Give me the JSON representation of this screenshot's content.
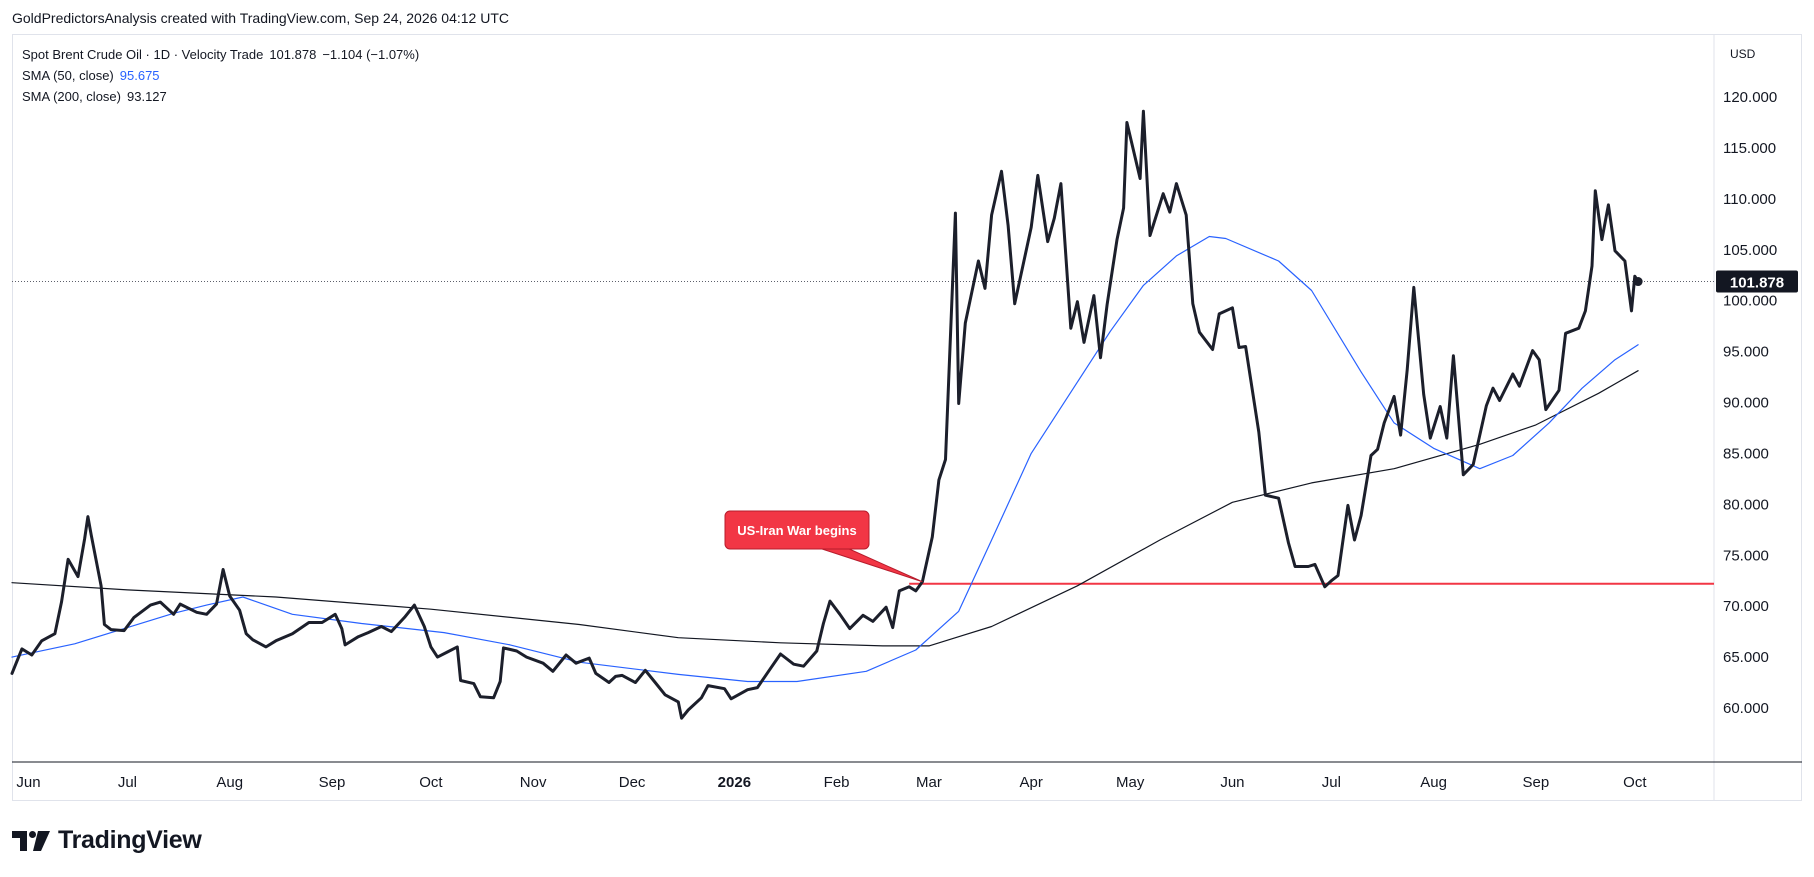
{
  "header": {
    "attribution": "GoldPredictorsAnalysis created with TradingView.com, Sep 24, 2026 04:12 UTC"
  },
  "legend": {
    "main": {
      "label": "Spot Brent Crude Oil · 1D · Velocity Trade",
      "value": "101.878",
      "change": "−1.104 (−1.07%)"
    },
    "sma50": {
      "label": "SMA (50, close)",
      "value": "95.675"
    },
    "sma200": {
      "label": "SMA (200, close)",
      "value": "93.127"
    }
  },
  "currency_button": "USD",
  "brand": {
    "name": "TradingView",
    "icon": "tradingview-logo-icon"
  },
  "colors": {
    "price_line": "#1c1f2b",
    "sma50": "#2962ff",
    "sma200": "#131722",
    "level_line": "#f23645",
    "callout_bg": "#f23645",
    "last_price_badge": "#131722",
    "axis_text": "#131722",
    "border": "#e0e3eb"
  },
  "chart_data": {
    "type": "line",
    "title": "",
    "xlabel": "",
    "ylabel": "",
    "ylim": [
      55,
      123
    ],
    "x_range": [
      "2025-05-27",
      "2026-10-25"
    ],
    "x_ticks": [
      {
        "date": "2025-06-01",
        "label": "Jun"
      },
      {
        "date": "2025-07-01",
        "label": "Jul"
      },
      {
        "date": "2025-08-01",
        "label": "Aug"
      },
      {
        "date": "2025-09-01",
        "label": "Sep"
      },
      {
        "date": "2025-10-01",
        "label": "Oct"
      },
      {
        "date": "2025-11-01",
        "label": "Nov"
      },
      {
        "date": "2025-12-01",
        "label": "Dec"
      },
      {
        "date": "2026-01-01",
        "label": "2026",
        "bold": true
      },
      {
        "date": "2026-02-01",
        "label": "Feb"
      },
      {
        "date": "2026-03-01",
        "label": "Mar"
      },
      {
        "date": "2026-04-01",
        "label": "Apr"
      },
      {
        "date": "2026-05-01",
        "label": "May"
      },
      {
        "date": "2026-06-01",
        "label": "Jun"
      },
      {
        "date": "2026-07-01",
        "label": "Jul"
      },
      {
        "date": "2026-08-01",
        "label": "Aug"
      },
      {
        "date": "2026-09-01",
        "label": "Sep"
      },
      {
        "date": "2026-10-01",
        "label": "Oct"
      }
    ],
    "y_ticks": [
      "60.000",
      "65.000",
      "70.000",
      "75.000",
      "80.000",
      "85.000",
      "90.000",
      "95.000",
      "100.000",
      "105.000",
      "110.000",
      "115.000",
      "120.000"
    ],
    "grid": false,
    "last_price": {
      "value": 101.878,
      "label": "101.878"
    },
    "series": [
      {
        "name": "Spot Brent Crude Oil",
        "role": "price",
        "points": [
          [
            "2025-05-27",
            63.4
          ],
          [
            "2025-05-30",
            65.8
          ],
          [
            "2025-06-02",
            65.2
          ],
          [
            "2025-06-05",
            66.6
          ],
          [
            "2025-06-09",
            67.3
          ],
          [
            "2025-06-11",
            70.4
          ],
          [
            "2025-06-13",
            74.6
          ],
          [
            "2025-06-16",
            72.9
          ],
          [
            "2025-06-18",
            76.6
          ],
          [
            "2025-06-19",
            78.8
          ],
          [
            "2025-06-20",
            77.0
          ],
          [
            "2025-06-23",
            72.0
          ],
          [
            "2025-06-24",
            68.2
          ],
          [
            "2025-06-26",
            67.7
          ],
          [
            "2025-06-30",
            67.6
          ],
          [
            "2025-07-03",
            68.9
          ],
          [
            "2025-07-08",
            70.1
          ],
          [
            "2025-07-11",
            70.4
          ],
          [
            "2025-07-15",
            69.2
          ],
          [
            "2025-07-17",
            70.2
          ],
          [
            "2025-07-22",
            69.4
          ],
          [
            "2025-07-25",
            69.2
          ],
          [
            "2025-07-28",
            70.2
          ],
          [
            "2025-07-30",
            73.6
          ],
          [
            "2025-08-01",
            71.0
          ],
          [
            "2025-08-04",
            69.6
          ],
          [
            "2025-08-06",
            67.3
          ],
          [
            "2025-08-08",
            66.7
          ],
          [
            "2025-08-12",
            66.0
          ],
          [
            "2025-08-15",
            66.6
          ],
          [
            "2025-08-20",
            67.3
          ],
          [
            "2025-08-25",
            68.4
          ],
          [
            "2025-08-29",
            68.4
          ],
          [
            "2025-09-02",
            69.2
          ],
          [
            "2025-09-04",
            67.8
          ],
          [
            "2025-09-05",
            66.2
          ],
          [
            "2025-09-09",
            67.0
          ],
          [
            "2025-09-12",
            67.4
          ],
          [
            "2025-09-16",
            68.0
          ],
          [
            "2025-09-19",
            67.5
          ],
          [
            "2025-09-23",
            68.9
          ],
          [
            "2025-09-26",
            70.1
          ],
          [
            "2025-09-29",
            68.0
          ],
          [
            "2025-10-01",
            66.0
          ],
          [
            "2025-10-03",
            65.0
          ],
          [
            "2025-10-06",
            65.5
          ],
          [
            "2025-10-09",
            66.0
          ],
          [
            "2025-10-10",
            62.7
          ],
          [
            "2025-10-14",
            62.4
          ],
          [
            "2025-10-16",
            61.1
          ],
          [
            "2025-10-20",
            61.0
          ],
          [
            "2025-10-22",
            62.6
          ],
          [
            "2025-10-23",
            65.9
          ],
          [
            "2025-10-27",
            65.6
          ],
          [
            "2025-10-30",
            65.0
          ],
          [
            "2025-11-04",
            64.4
          ],
          [
            "2025-11-07",
            63.6
          ],
          [
            "2025-11-11",
            65.2
          ],
          [
            "2025-11-14",
            64.4
          ],
          [
            "2025-11-18",
            64.9
          ],
          [
            "2025-11-20",
            63.4
          ],
          [
            "2025-11-24",
            62.5
          ],
          [
            "2025-11-26",
            63.1
          ],
          [
            "2025-11-28",
            63.2
          ],
          [
            "2025-12-02",
            62.5
          ],
          [
            "2025-12-05",
            63.7
          ],
          [
            "2025-12-08",
            62.5
          ],
          [
            "2025-12-11",
            61.3
          ],
          [
            "2025-12-15",
            60.6
          ],
          [
            "2025-12-16",
            59.0
          ],
          [
            "2025-12-18",
            59.8
          ],
          [
            "2025-12-22",
            61.0
          ],
          [
            "2025-12-24",
            62.2
          ],
          [
            "2025-12-29",
            61.9
          ],
          [
            "2025-12-31",
            60.9
          ],
          [
            "2026-01-05",
            61.8
          ],
          [
            "2026-01-08",
            62.0
          ],
          [
            "2026-01-12",
            63.9
          ],
          [
            "2026-01-15",
            65.3
          ],
          [
            "2026-01-19",
            64.3
          ],
          [
            "2026-01-22",
            64.1
          ],
          [
            "2026-01-26",
            65.6
          ],
          [
            "2026-01-28",
            68.3
          ],
          [
            "2026-01-30",
            70.5
          ],
          [
            "2026-02-02",
            69.2
          ],
          [
            "2026-02-05",
            67.8
          ],
          [
            "2026-02-09",
            69.1
          ],
          [
            "2026-02-12",
            68.5
          ],
          [
            "2026-02-16",
            69.9
          ],
          [
            "2026-02-18",
            67.9
          ],
          [
            "2026-02-20",
            71.5
          ],
          [
            "2026-02-23",
            71.9
          ],
          [
            "2026-02-25",
            71.5
          ],
          [
            "2026-02-27",
            72.4
          ],
          [
            "2026-03-02",
            76.8
          ],
          [
            "2026-03-04",
            82.4
          ],
          [
            "2026-03-06",
            84.4
          ],
          [
            "2026-03-09",
            108.6
          ],
          [
            "2026-03-10",
            89.9
          ],
          [
            "2026-03-12",
            97.8
          ],
          [
            "2026-03-16",
            103.9
          ],
          [
            "2026-03-18",
            101.2
          ],
          [
            "2026-03-20",
            108.4
          ],
          [
            "2026-03-23",
            112.7
          ],
          [
            "2026-03-25",
            107.4
          ],
          [
            "2026-03-27",
            99.7
          ],
          [
            "2026-04-01",
            107.2
          ],
          [
            "2026-04-03",
            112.3
          ],
          [
            "2026-04-06",
            105.8
          ],
          [
            "2026-04-08",
            108.1
          ],
          [
            "2026-04-10",
            111.5
          ],
          [
            "2026-04-13",
            97.3
          ],
          [
            "2026-04-15",
            99.9
          ],
          [
            "2026-04-17",
            95.9
          ],
          [
            "2026-04-20",
            100.5
          ],
          [
            "2026-04-22",
            94.4
          ],
          [
            "2026-04-24",
            99.6
          ],
          [
            "2026-04-27",
            106.0
          ],
          [
            "2026-04-29",
            109.1
          ],
          [
            "2026-04-30",
            117.5
          ],
          [
            "2026-05-04",
            112.0
          ],
          [
            "2026-05-05",
            118.6
          ],
          [
            "2026-05-07",
            106.4
          ],
          [
            "2026-05-11",
            110.5
          ],
          [
            "2026-05-13",
            108.7
          ],
          [
            "2026-05-15",
            111.5
          ],
          [
            "2026-05-18",
            108.4
          ],
          [
            "2026-05-20",
            99.7
          ],
          [
            "2026-05-22",
            96.9
          ],
          [
            "2026-05-26",
            95.2
          ],
          [
            "2026-05-28",
            98.7
          ],
          [
            "2026-06-01",
            99.3
          ],
          [
            "2026-06-03",
            95.4
          ],
          [
            "2026-06-05",
            95.5
          ],
          [
            "2026-06-09",
            87.1
          ],
          [
            "2026-06-11",
            80.9
          ],
          [
            "2026-06-15",
            80.6
          ],
          [
            "2026-06-18",
            76.2
          ],
          [
            "2026-06-20",
            73.9
          ],
          [
            "2026-06-24",
            73.9
          ],
          [
            "2026-06-26",
            74.1
          ],
          [
            "2026-06-29",
            71.9
          ],
          [
            "2026-07-01",
            72.5
          ],
          [
            "2026-07-03",
            73.0
          ],
          [
            "2026-07-06",
            79.9
          ],
          [
            "2026-07-08",
            76.5
          ],
          [
            "2026-07-10",
            78.9
          ],
          [
            "2026-07-13",
            84.8
          ],
          [
            "2026-07-15",
            85.4
          ],
          [
            "2026-07-17",
            88.0
          ],
          [
            "2026-07-20",
            90.6
          ],
          [
            "2026-07-22",
            86.8
          ],
          [
            "2026-07-24",
            93.2
          ],
          [
            "2026-07-26",
            101.3
          ],
          [
            "2026-07-29",
            90.8
          ],
          [
            "2026-07-31",
            86.5
          ],
          [
            "2026-08-03",
            89.6
          ],
          [
            "2026-08-05",
            86.5
          ],
          [
            "2026-08-07",
            94.6
          ],
          [
            "2026-08-10",
            82.9
          ],
          [
            "2026-08-13",
            83.9
          ],
          [
            "2026-08-17",
            89.7
          ],
          [
            "2026-08-19",
            91.4
          ],
          [
            "2026-08-21",
            90.2
          ],
          [
            "2026-08-25",
            92.8
          ],
          [
            "2026-08-27",
            91.6
          ],
          [
            "2026-08-31",
            95.1
          ],
          [
            "2026-09-02",
            94.2
          ],
          [
            "2026-09-04",
            89.3
          ],
          [
            "2026-09-08",
            91.2
          ],
          [
            "2026-09-10",
            96.8
          ],
          [
            "2026-09-14",
            97.3
          ],
          [
            "2026-09-16",
            99.0
          ],
          [
            "2026-09-18",
            103.4
          ],
          [
            "2026-09-19",
            110.8
          ],
          [
            "2026-09-21",
            106.0
          ],
          [
            "2026-09-23",
            109.4
          ],
          [
            "2026-09-25",
            104.9
          ],
          [
            "2026-09-28",
            103.9
          ],
          [
            "2026-09-30",
            99.0
          ],
          [
            "2026-10-01",
            102.4
          ],
          [
            "2026-10-02",
            101.878
          ]
        ]
      },
      {
        "name": "SMA (50, close)",
        "role": "sma50",
        "points": [
          [
            "2025-05-27",
            65.0
          ],
          [
            "2025-06-15",
            66.3
          ],
          [
            "2025-07-01",
            67.9
          ],
          [
            "2025-07-15",
            69.3
          ],
          [
            "2025-07-25",
            70.1
          ],
          [
            "2025-08-05",
            70.9
          ],
          [
            "2025-08-20",
            69.2
          ],
          [
            "2025-09-10",
            68.3
          ],
          [
            "2025-10-05",
            67.4
          ],
          [
            "2025-10-25",
            66.2
          ],
          [
            "2025-11-15",
            64.5
          ],
          [
            "2025-12-15",
            63.3
          ],
          [
            "2026-01-05",
            62.6
          ],
          [
            "2026-01-20",
            62.6
          ],
          [
            "2026-02-10",
            63.6
          ],
          [
            "2026-02-25",
            65.7
          ],
          [
            "2026-03-10",
            69.5
          ],
          [
            "2026-03-20",
            76.5
          ],
          [
            "2026-04-01",
            85.0
          ],
          [
            "2026-04-15",
            92.0
          ],
          [
            "2026-04-25",
            97.0
          ],
          [
            "2026-05-05",
            101.5
          ],
          [
            "2026-05-15",
            104.4
          ],
          [
            "2026-05-25",
            106.3
          ],
          [
            "2026-05-30",
            106.1
          ],
          [
            "2026-06-15",
            103.9
          ],
          [
            "2026-06-25",
            101.0
          ],
          [
            "2026-07-10",
            93.0
          ],
          [
            "2026-07-20",
            88.0
          ],
          [
            "2026-08-01",
            85.5
          ],
          [
            "2026-08-15",
            83.5
          ],
          [
            "2026-08-25",
            84.8
          ],
          [
            "2026-09-05",
            88.0
          ],
          [
            "2026-09-15",
            91.4
          ],
          [
            "2026-09-25",
            94.2
          ],
          [
            "2026-10-02",
            95.675
          ]
        ]
      },
      {
        "name": "SMA (200, close)",
        "role": "sma200",
        "points": [
          [
            "2025-05-27",
            72.3
          ],
          [
            "2025-07-01",
            71.6
          ],
          [
            "2025-08-15",
            70.9
          ],
          [
            "2025-10-01",
            69.7
          ],
          [
            "2025-11-15",
            68.2
          ],
          [
            "2025-12-15",
            66.9
          ],
          [
            "2026-01-15",
            66.4
          ],
          [
            "2026-02-15",
            66.1
          ],
          [
            "2026-03-01",
            66.1
          ],
          [
            "2026-03-20",
            68.0
          ],
          [
            "2026-04-15",
            72.0
          ],
          [
            "2026-05-10",
            76.5
          ],
          [
            "2026-06-01",
            80.2
          ],
          [
            "2026-06-25",
            82.1
          ],
          [
            "2026-07-20",
            83.5
          ],
          [
            "2026-08-15",
            85.9
          ],
          [
            "2026-09-01",
            87.8
          ],
          [
            "2026-09-20",
            90.9
          ],
          [
            "2026-10-02",
            93.127
          ]
        ]
      }
    ],
    "level_line": {
      "value": 72.2,
      "from": "2026-02-23",
      "to": "2026-10-25"
    },
    "annotation": {
      "text": "US-Iran War begins",
      "date": "2026-02-27",
      "value": 72.4
    }
  }
}
